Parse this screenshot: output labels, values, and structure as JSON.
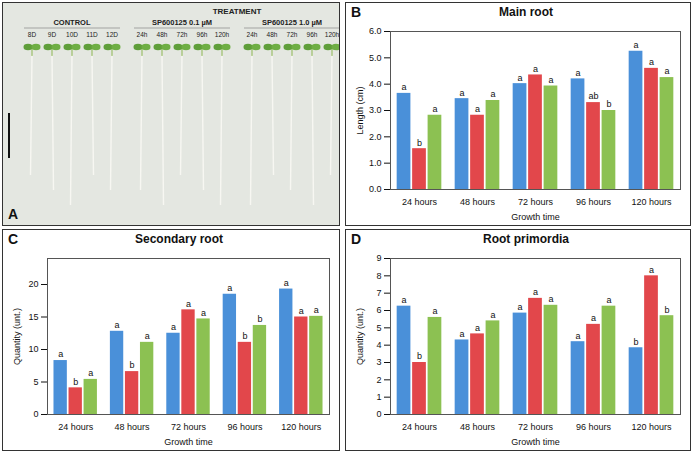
{
  "photo": {
    "panel": "A",
    "header": {
      "control": "CONTROL",
      "treatment": "TREATMENT",
      "group1": "SP600125 0.1 µM",
      "group2": "SP600125 1.0 µM"
    },
    "control_labels": [
      "8D",
      "9D",
      "10D",
      "11D",
      "12D"
    ],
    "treatment_labels": [
      "24h",
      "48h",
      "72h",
      "96h",
      "120h"
    ]
  },
  "chart_data": [
    {
      "panel": "B",
      "type": "bar",
      "title": "Main root",
      "x_label": "Growth time",
      "y_label": "Length (cm)",
      "categories": [
        "24 hours",
        "48 hours",
        "72 hours",
        "96 hours",
        "120 hours"
      ],
      "series": [
        {
          "color": "#4a90d9",
          "values": [
            3.65,
            3.45,
            4.02,
            4.2,
            5.25
          ],
          "letters": [
            "a",
            "a",
            "a",
            "a",
            "a"
          ]
        },
        {
          "color": "#e2474b",
          "values": [
            1.55,
            2.82,
            4.35,
            3.3,
            4.6
          ],
          "letters": [
            "b",
            "a",
            "a",
            "ab",
            "a"
          ]
        },
        {
          "color": "#8cc152",
          "values": [
            2.82,
            3.38,
            3.93,
            3.0,
            4.25
          ],
          "letters": [
            "a",
            "a",
            "a",
            "b",
            "a"
          ]
        }
      ],
      "ylim": [
        0,
        6
      ],
      "yticks": [
        0,
        1,
        2,
        3,
        4,
        5,
        6
      ],
      "grid": false
    },
    {
      "panel": "C",
      "type": "bar",
      "title": "Secondary root",
      "x_label": "Growth time",
      "y_label": "Quantity (unt.)",
      "categories": [
        "24 hours",
        "48 hours",
        "72 hours",
        "96 hours",
        "120 hours"
      ],
      "series": [
        {
          "color": "#4a90d9",
          "values": [
            8.3,
            12.8,
            12.5,
            18.5,
            19.3
          ],
          "letters": [
            "a",
            "a",
            "a",
            "a",
            "a"
          ]
        },
        {
          "color": "#e2474b",
          "values": [
            4.1,
            6.6,
            16.1,
            11.1,
            15.0
          ],
          "letters": [
            "b",
            "b",
            "a",
            "b",
            "a"
          ]
        },
        {
          "color": "#8cc152",
          "values": [
            5.4,
            11.1,
            14.7,
            13.7,
            15.1
          ],
          "letters": [
            "a",
            "a",
            "a",
            "b",
            "a"
          ]
        }
      ],
      "ylim": [
        0,
        24
      ],
      "yticks": [
        0,
        5,
        10,
        15,
        20
      ],
      "grid": false
    },
    {
      "panel": "D",
      "type": "bar",
      "title": "Root primordia",
      "x_label": "Growth time",
      "y_label": "Quantity (unt.)",
      "categories": [
        "24 hours",
        "48 hours",
        "72 hours",
        "96 hours",
        "120 hours"
      ],
      "series": [
        {
          "color": "#4a90d9",
          "values": [
            6.25,
            4.3,
            5.85,
            4.2,
            3.85
          ],
          "letters": [
            "a",
            "a",
            "a",
            "a",
            "b"
          ]
        },
        {
          "color": "#e2474b",
          "values": [
            3.0,
            4.65,
            6.7,
            5.2,
            8.0
          ],
          "letters": [
            "b",
            "a",
            "a",
            "a",
            "a"
          ]
        },
        {
          "color": "#8cc152",
          "values": [
            5.6,
            5.4,
            6.3,
            6.25,
            5.7
          ],
          "letters": [
            "a",
            "a",
            "a",
            "a",
            "b"
          ]
        }
      ],
      "ylim": [
        0,
        9
      ],
      "yticks": [
        0,
        1,
        2,
        3,
        4,
        5,
        6,
        7,
        8,
        9
      ],
      "grid": false
    }
  ]
}
